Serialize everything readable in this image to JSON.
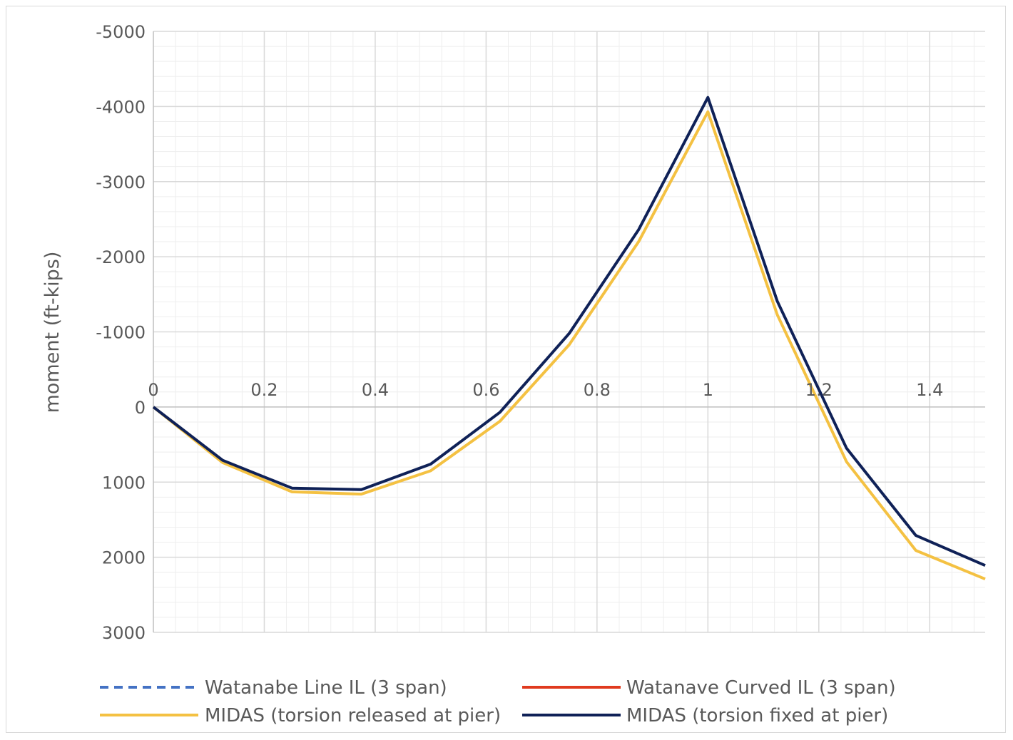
{
  "chart_data": {
    "type": "line",
    "title": "",
    "xlabel": "",
    "ylabel": "moment (ft-kips)",
    "xlim": [
      0,
      1.5
    ],
    "ylim": [
      -5000,
      3000
    ],
    "y_inverted": true,
    "grid": true,
    "legend_position": "bottom",
    "x_ticks": [
      "0",
      "0.2",
      "0.4",
      "0.6",
      "0.8",
      "1",
      "1.2",
      "1.4"
    ],
    "y_ticks": [
      "-5000",
      "-4000",
      "-3000",
      "-2000",
      "-1000",
      "0",
      "1000",
      "2000",
      "3000"
    ],
    "series": [
      {
        "name": "Watanabe Line IL (3 span)",
        "color": "#4472c4",
        "style": "dashed",
        "points": []
      },
      {
        "name": "Watanave Curved IL (3 span)",
        "color": "#e03a1e",
        "style": "solid",
        "points": []
      },
      {
        "name": "MIDAS (torsion released at pier)",
        "color": "#f4c142",
        "style": "solid",
        "points": [
          [
            0,
            0
          ],
          [
            0.125,
            740
          ],
          [
            0.25,
            1130
          ],
          [
            0.375,
            1160
          ],
          [
            0.5,
            850
          ],
          [
            0.625,
            190
          ],
          [
            0.75,
            -830
          ],
          [
            0.875,
            -2200
          ],
          [
            1.0,
            -3930
          ],
          [
            1.125,
            -1230
          ],
          [
            1.25,
            730
          ],
          [
            1.375,
            1910
          ],
          [
            1.5,
            2290
          ]
        ]
      },
      {
        "name": "MIDAS (torsion fixed at pier)",
        "color": "#0f2157",
        "style": "solid",
        "points": [
          [
            0,
            0
          ],
          [
            0.125,
            710
          ],
          [
            0.25,
            1080
          ],
          [
            0.375,
            1100
          ],
          [
            0.5,
            760
          ],
          [
            0.625,
            70
          ],
          [
            0.75,
            -980
          ],
          [
            0.875,
            -2360
          ],
          [
            1.0,
            -4120
          ],
          [
            1.125,
            -1410
          ],
          [
            1.25,
            550
          ],
          [
            1.375,
            1710
          ],
          [
            1.5,
            2110
          ]
        ]
      }
    ]
  }
}
